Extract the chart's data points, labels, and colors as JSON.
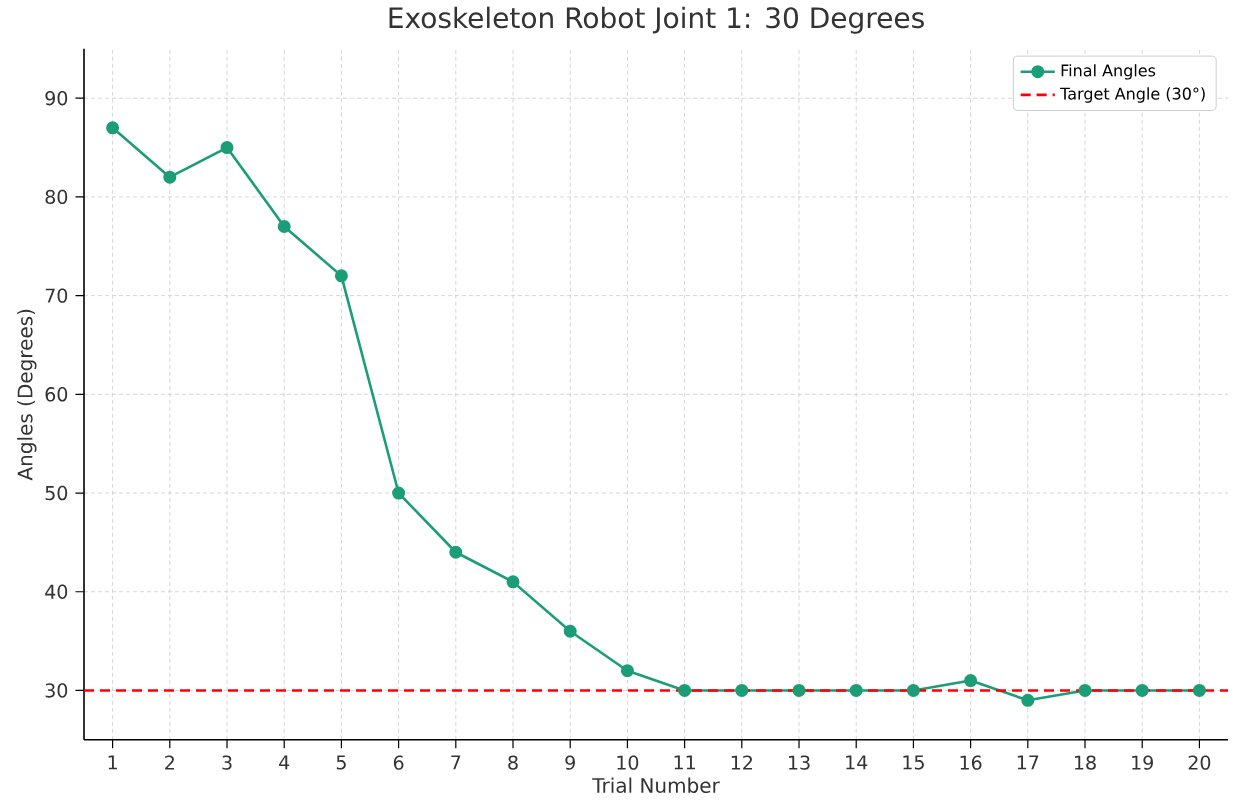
{
  "chart_data": {
    "type": "line",
    "title": "Exoskeleton Robot Joint 1: 30 Degrees",
    "xlabel": "Trial Number",
    "ylabel": "Angles (Degrees)",
    "x": [
      1,
      2,
      3,
      4,
      5,
      6,
      7,
      8,
      9,
      10,
      11,
      12,
      13,
      14,
      15,
      16,
      17,
      18,
      19,
      20
    ],
    "series": [
      {
        "name": "Final Angles",
        "color": "#1b9e77",
        "values": [
          87,
          82,
          85,
          77,
          72,
          50,
          44,
          41,
          36,
          32,
          30,
          30,
          30,
          30,
          30,
          31,
          29,
          30,
          30,
          30
        ]
      }
    ],
    "xlim": [
      0.5,
      20.5
    ],
    "ylim": [
      25,
      95
    ],
    "xticks": [
      1,
      2,
      3,
      4,
      5,
      6,
      7,
      8,
      9,
      10,
      11,
      12,
      13,
      14,
      15,
      16,
      17,
      18,
      19,
      20
    ],
    "yticks": [
      30,
      40,
      50,
      60,
      70,
      80,
      90
    ],
    "ref_lines": [
      {
        "axis": "y",
        "value": 30,
        "label": "Target Angle (30°)",
        "color": "#ff0000",
        "line_style": "dashed"
      }
    ],
    "grid": true,
    "legend": "top right",
    "marker": "circle",
    "line_style": "solid"
  }
}
